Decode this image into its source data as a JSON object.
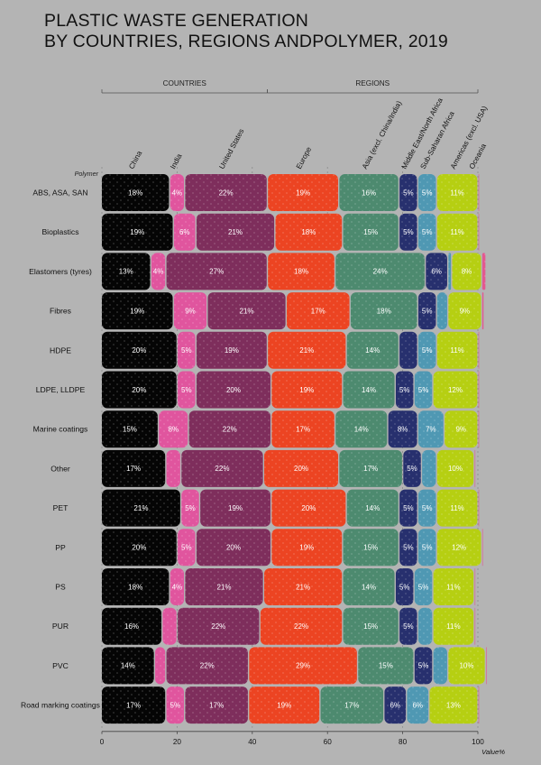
{
  "title": {
    "line1": "PLASTIC WASTE GENERATION",
    "line2": "BY COUNTRIES, REGIONS ANDPOLYMER, 2019"
  },
  "chart_data": {
    "type": "bar",
    "orientation": "horizontal",
    "stacked": "100%",
    "title": "PLASTIC WASTE GENERATION BY COUNTRIES, REGIONS ANDPOLYMER, 2019",
    "row_header": "Polymer",
    "xlabel": "Value%",
    "xlim": [
      0,
      100
    ],
    "xticks": [
      0,
      20,
      40,
      60,
      80,
      100
    ],
    "groups": [
      {
        "label": "COUNTRIES",
        "members": [
          "China",
          "India",
          "United States"
        ]
      },
      {
        "label": "REGIONS",
        "members": [
          "Europe",
          "Asia (excl. China/India)",
          "Middle East/North Africa",
          "Sub-Saharan Africa",
          "Americas (excl. USA)",
          "Oceania"
        ]
      }
    ],
    "categories": [
      "ABS, ASA, SAN",
      "Bioplastics",
      "Elastomers (tyres)",
      "Fibres",
      "HDPE",
      "LDPE, LLDPE",
      "Marine coatings",
      "Other",
      "PET",
      "PP",
      "PS",
      "PUR",
      "PVC",
      "Road marking coatings"
    ],
    "series": [
      {
        "name": "China",
        "color": "#050505",
        "values": [
          18,
          19,
          13,
          19,
          20,
          20,
          15,
          17,
          21,
          20,
          18,
          16,
          14,
          17
        ]
      },
      {
        "name": "India",
        "color": "#e0559e",
        "values": [
          4,
          6,
          4,
          9,
          5,
          5,
          8,
          4,
          5,
          5,
          4,
          4,
          3,
          5
        ]
      },
      {
        "name": "United States",
        "color": "#7e2e5c",
        "values": [
          22,
          21,
          27,
          21,
          19,
          20,
          22,
          22,
          19,
          20,
          21,
          22,
          22,
          17
        ]
      },
      {
        "name": "Europe",
        "color": "#ec4422",
        "values": [
          19,
          18,
          18,
          17,
          21,
          19,
          17,
          20,
          20,
          19,
          21,
          22,
          29,
          19
        ]
      },
      {
        "name": "Asia (excl. China/India)",
        "color": "#4d8a6f",
        "values": [
          16,
          15,
          24,
          18,
          14,
          14,
          14,
          17,
          14,
          15,
          14,
          15,
          15,
          17
        ]
      },
      {
        "name": "Middle East/North Africa",
        "color": "#27306e",
        "values": [
          5,
          5,
          6,
          5,
          5,
          5,
          8,
          5,
          5,
          5,
          5,
          5,
          5,
          6
        ]
      },
      {
        "name": "Sub-Saharan Africa",
        "color": "#4f98b3",
        "values": [
          5,
          5,
          1,
          3,
          5,
          5,
          7,
          4,
          5,
          5,
          5,
          4,
          4,
          6
        ]
      },
      {
        "name": "Americas (excl. USA)",
        "color": "#b6cf12",
        "values": [
          11,
          11,
          8,
          9,
          11,
          12,
          9,
          10,
          11,
          12,
          11,
          11,
          10,
          13
        ]
      },
      {
        "name": "Oceania",
        "color": "#e3588f",
        "values": [
          0.3,
          0.3,
          1,
          0.5,
          0.3,
          0.3,
          0.3,
          0.3,
          0.3,
          0.3,
          0.3,
          0.3,
          0.3,
          0.3
        ]
      }
    ],
    "data_labels": [
      [
        "18%",
        "4%",
        "22%",
        "19%",
        "16%",
        "5%",
        "5%",
        "11%",
        ""
      ],
      [
        "19%",
        "6%",
        "21%",
        "18%",
        "15%",
        "5%",
        "5%",
        "11%",
        ""
      ],
      [
        "13%",
        "4%",
        "27%",
        "18%",
        "24%",
        "6%",
        "",
        "8%",
        ""
      ],
      [
        "19%",
        "9%",
        "21%",
        "17%",
        "18%",
        "5%",
        "",
        "9%",
        ""
      ],
      [
        "20%",
        "5%",
        "19%",
        "21%",
        "14%",
        "",
        "5%",
        "11%",
        ""
      ],
      [
        "20%",
        "5%",
        "20%",
        "19%",
        "14%",
        "5%",
        "5%",
        "12%",
        ""
      ],
      [
        "15%",
        "8%",
        "22%",
        "17%",
        "14%",
        "8%",
        "7%",
        "9%",
        ""
      ],
      [
        "17%",
        "",
        "22%",
        "20%",
        "17%",
        "5%",
        "",
        "10%",
        ""
      ],
      [
        "21%",
        "5%",
        "19%",
        "20%",
        "14%",
        "5%",
        "5%",
        "11%",
        ""
      ],
      [
        "20%",
        "5%",
        "20%",
        "19%",
        "15%",
        "5%",
        "5%",
        "12%",
        ""
      ],
      [
        "18%",
        "4%",
        "21%",
        "21%",
        "14%",
        "5%",
        "5%",
        "11%",
        ""
      ],
      [
        "16%",
        "",
        "22%",
        "22%",
        "15%",
        "5%",
        "",
        "11%",
        ""
      ],
      [
        "14%",
        "",
        "22%",
        "29%",
        "15%",
        "5%",
        "",
        "10%",
        ""
      ],
      [
        "17%",
        "5%",
        "17%",
        "19%",
        "17%",
        "6%",
        "6%",
        "13%",
        ""
      ]
    ]
  }
}
